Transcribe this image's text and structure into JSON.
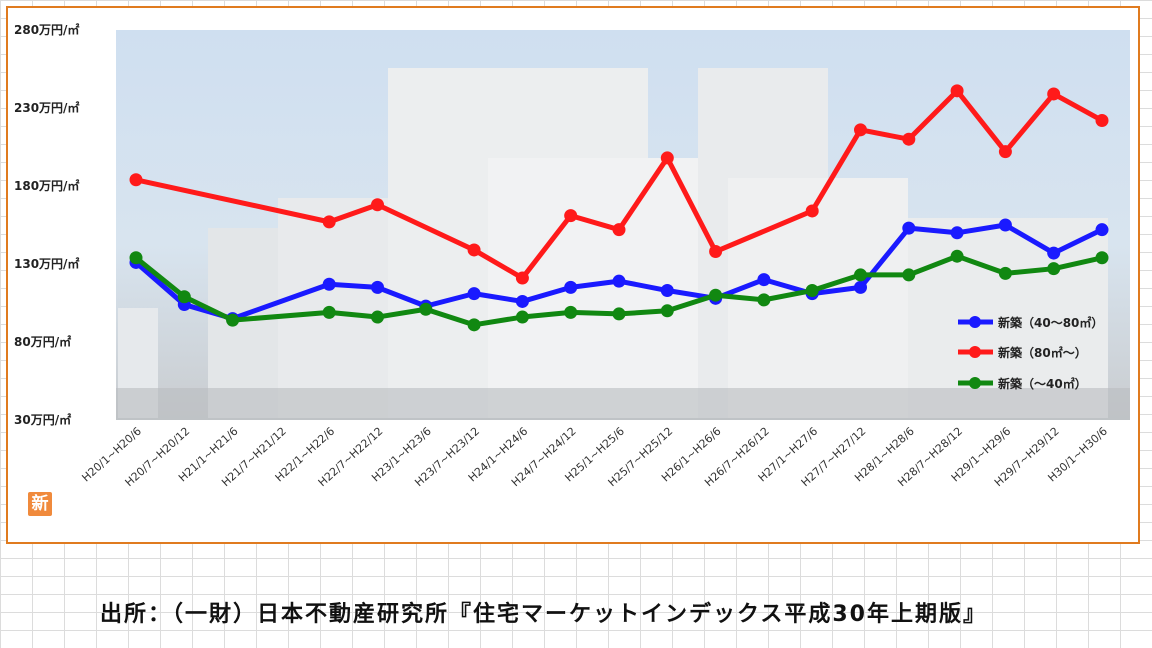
{
  "chart_data": {
    "type": "line",
    "y_unit": "万円/㎡",
    "ylim": [
      30,
      280
    ],
    "yticks": [
      30,
      80,
      130,
      180,
      230,
      280
    ],
    "ytick_labels": [
      "30万円/㎡",
      "80万円/㎡",
      "130万円/㎡",
      "180万円/㎡",
      "230万円/㎡",
      "280万円/㎡"
    ],
    "categories": [
      "H20/1~H20/6",
      "H20/7~H20/12",
      "H21/1~H21/6",
      "H21/7~H21/12",
      "H22/1~H22/6",
      "H22/7~H22/12",
      "H23/1~H23/6",
      "H23/7~H23/12",
      "H24/1~H24/6",
      "H24/7~H24/12",
      "H25/1~H25/6",
      "H25/7~H25/12",
      "H26/1~H26/6",
      "H26/7~H26/12",
      "H27/1~H27/6",
      "H27/7~H27/12",
      "H28/1~H28/6",
      "H28/7~H28/12",
      "H29/1~H29/6",
      "H29/7~H29/12",
      "H30/1~H30/6"
    ],
    "series": [
      {
        "name": "新築（40～80㎡）",
        "color": "#1a1aff",
        "values": [
          131,
          104,
          95,
          null,
          117,
          115,
          103,
          111,
          106,
          115,
          119,
          113,
          108,
          120,
          111,
          115,
          153,
          150,
          155,
          137,
          152
        ]
      },
      {
        "name": "新築（80㎡～）",
        "color": "#ff1a1a",
        "values": [
          184,
          null,
          null,
          null,
          157,
          168,
          null,
          139,
          121,
          161,
          152,
          198,
          138,
          null,
          164,
          216,
          210,
          241,
          202,
          239,
          222
        ]
      },
      {
        "name": "新築（～40㎡）",
        "color": "#118811",
        "values": [
          134,
          109,
          94,
          null,
          99,
          96,
          101,
          91,
          96,
          99,
          98,
          100,
          110,
          107,
          113,
          123,
          123,
          135,
          124,
          127,
          134
        ]
      }
    ],
    "legend_position": "right-center",
    "grid": false
  },
  "logo": {
    "text": "新"
  },
  "source": {
    "text": "出所：（一財）日本不動産研究所『住宅マーケットインデックス平成30年上期版』"
  }
}
